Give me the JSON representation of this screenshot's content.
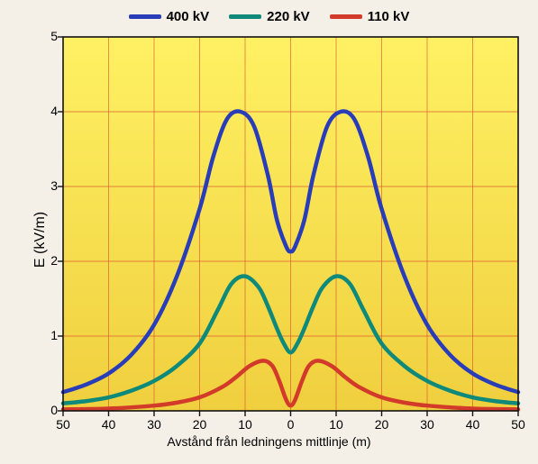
{
  "chart": {
    "type": "line",
    "xlabel": "Avstånd från ledningens mittlinje (m)",
    "ylabel": "E (kV/m)",
    "xlim": [
      -50,
      50
    ],
    "ylim": [
      0,
      5
    ],
    "xtick_positions": [
      -50,
      -40,
      -30,
      -20,
      -10,
      0,
      10,
      20,
      30,
      40,
      50
    ],
    "xtick_labels": [
      "50",
      "40",
      "30",
      "20",
      "10",
      "0",
      "10",
      "20",
      "30",
      "40",
      "50"
    ],
    "ytick_positions": [
      0,
      1,
      2,
      3,
      4,
      5
    ],
    "ytick_labels": [
      "0",
      "1",
      "2",
      "3",
      "4",
      "5"
    ],
    "background": {
      "plot_fill_top": "#fef163",
      "plot_fill_bottom": "#f0cf3e",
      "outer": "#f2ecd9",
      "grid_major_color": "#d94a2d",
      "axis_color": "#121212",
      "tick_fontsize": 14,
      "label_fontsize": 16
    },
    "line_width": 4.5,
    "series": [
      {
        "name": "400 kV",
        "color": "#2a3db8",
        "points": [
          [
            -50,
            0.25
          ],
          [
            -45,
            0.35
          ],
          [
            -40,
            0.5
          ],
          [
            -35,
            0.75
          ],
          [
            -30,
            1.15
          ],
          [
            -25,
            1.8
          ],
          [
            -20,
            2.7
          ],
          [
            -17,
            3.4
          ],
          [
            -14,
            3.9
          ],
          [
            -11,
            4.0
          ],
          [
            -8,
            3.8
          ],
          [
            -5,
            3.15
          ],
          [
            -3,
            2.55
          ],
          [
            -1,
            2.2
          ],
          [
            0,
            2.13
          ],
          [
            1,
            2.2
          ],
          [
            3,
            2.55
          ],
          [
            5,
            3.15
          ],
          [
            8,
            3.8
          ],
          [
            11,
            4.0
          ],
          [
            14,
            3.9
          ],
          [
            17,
            3.4
          ],
          [
            20,
            2.7
          ],
          [
            25,
            1.8
          ],
          [
            30,
            1.15
          ],
          [
            35,
            0.75
          ],
          [
            40,
            0.5
          ],
          [
            45,
            0.35
          ],
          [
            50,
            0.25
          ]
        ]
      },
      {
        "name": "220 kV",
        "color": "#0f8a7a",
        "points": [
          [
            -50,
            0.1
          ],
          [
            -45,
            0.13
          ],
          [
            -40,
            0.18
          ],
          [
            -35,
            0.27
          ],
          [
            -30,
            0.4
          ],
          [
            -25,
            0.6
          ],
          [
            -20,
            0.9
          ],
          [
            -16,
            1.35
          ],
          [
            -13,
            1.7
          ],
          [
            -10,
            1.8
          ],
          [
            -7,
            1.65
          ],
          [
            -5,
            1.4
          ],
          [
            -3,
            1.1
          ],
          [
            -1.5,
            0.9
          ],
          [
            0,
            0.78
          ],
          [
            1.5,
            0.9
          ],
          [
            3,
            1.1
          ],
          [
            5,
            1.4
          ],
          [
            7,
            1.65
          ],
          [
            10,
            1.8
          ],
          [
            13,
            1.7
          ],
          [
            16,
            1.35
          ],
          [
            20,
            0.9
          ],
          [
            25,
            0.6
          ],
          [
            30,
            0.4
          ],
          [
            35,
            0.27
          ],
          [
            40,
            0.18
          ],
          [
            45,
            0.13
          ],
          [
            50,
            0.1
          ]
        ]
      },
      {
        "name": "110 kV",
        "color": "#d23a2a",
        "points": [
          [
            -50,
            0.02
          ],
          [
            -40,
            0.03
          ],
          [
            -30,
            0.07
          ],
          [
            -25,
            0.11
          ],
          [
            -20,
            0.18
          ],
          [
            -15,
            0.32
          ],
          [
            -12,
            0.45
          ],
          [
            -9,
            0.6
          ],
          [
            -6,
            0.67
          ],
          [
            -4,
            0.6
          ],
          [
            -2.5,
            0.4
          ],
          [
            -1,
            0.15
          ],
          [
            0,
            0.07
          ],
          [
            1,
            0.15
          ],
          [
            2.5,
            0.4
          ],
          [
            4,
            0.6
          ],
          [
            6,
            0.67
          ],
          [
            9,
            0.6
          ],
          [
            12,
            0.45
          ],
          [
            15,
            0.32
          ],
          [
            20,
            0.18
          ],
          [
            25,
            0.11
          ],
          [
            30,
            0.07
          ],
          [
            40,
            0.03
          ],
          [
            50,
            0.02
          ]
        ]
      }
    ],
    "legend": {
      "items": [
        "400 kV",
        "220 kV",
        "110 kV"
      ]
    }
  }
}
